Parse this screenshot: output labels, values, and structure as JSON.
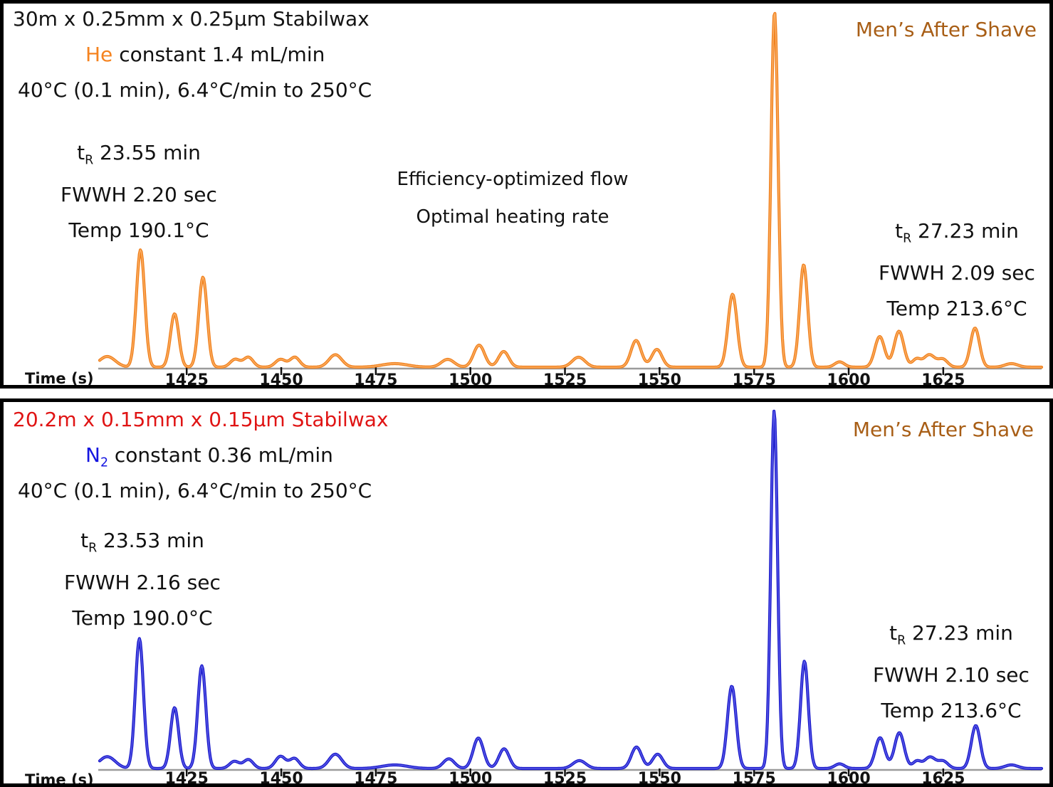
{
  "panels": [
    {
      "column_spec": "30m x 0.25mm x 0.25µm Stabilwax",
      "column_spec_color": "#141414",
      "carrier": {
        "gas": "He",
        "gas_sub": "",
        "gas_color": "#F5831F",
        "rest": "constant 1.4 mL/min"
      },
      "oven_program": "40°C (0.1 min), 6.4°C/min to 250°C",
      "peak1": {
        "t_symbol": "t",
        "t_sub": "R",
        "tr_value": "23.55 min",
        "fwwh": "FWWH 2.20 sec",
        "temp": "Temp 190.1°C"
      },
      "center_note": {
        "line1": "Efficiency-optimized flow",
        "line2": "Optimal heating rate"
      },
      "sample_name": "Men’s After Shave",
      "sample_color": "#A85E16",
      "peak2": {
        "t_symbol": "t",
        "t_sub": "R",
        "tr_value": "27.23 min",
        "fwwh": "FWWH 2.09 sec",
        "temp": "Temp 213.6°C"
      },
      "xlabel": "Time (s)"
    },
    {
      "column_spec": "20.2m x 0.15mm x 0.15µm Stabilwax",
      "column_spec_color": "#E01414",
      "carrier": {
        "gas": "N",
        "gas_sub": "2",
        "gas_color": "#1515E0",
        "rest": "constant 0.36 mL/min"
      },
      "oven_program": "40°C (0.1 min), 6.4°C/min to 250°C",
      "peak1": {
        "t_symbol": "t",
        "t_sub": "R",
        "tr_value": "23.53 min",
        "fwwh": "FWWH 2.16 sec",
        "temp": "Temp 190.0°C"
      },
      "sample_name": "Men’s After Shave",
      "sample_color": "#A85E16",
      "peak2": {
        "t_symbol": "t",
        "t_sub": "R",
        "tr_value": "27.23 min",
        "fwwh": "FWWH 2.10 sec",
        "temp": "Temp 213.6°C"
      },
      "xlabel": "Time (s)"
    }
  ],
  "chart_data": [
    {
      "type": "line",
      "title": "GC-FID chromatogram, Men's After Shave, 30m x 0.25mm x 0.25um Stabilwax, He 1.4 mL/min",
      "xlabel": "Time (s)",
      "x_range": [
        1402,
        1651
      ],
      "xticks": [
        1425,
        1450,
        1475,
        1500,
        1525,
        1550,
        1575,
        1600,
        1625
      ],
      "grid": false,
      "legend": "none",
      "series_color": "#F0811F",
      "series_core_color": "#FBAE62",
      "axis_color": "#9B9B9B",
      "peak_format": [
        "retention_time_s",
        "relative_height_0to1",
        "fwhm_s"
      ],
      "peaks": [
        [
          1404.0,
          0.03,
          5.0
        ],
        [
          1412.8,
          0.33,
          2.6
        ],
        [
          1421.8,
          0.15,
          2.6
        ],
        [
          1429.3,
          0.253,
          2.6
        ],
        [
          1437.8,
          0.022,
          3.0
        ],
        [
          1441.3,
          0.028,
          3.0
        ],
        [
          1449.8,
          0.022,
          3.2
        ],
        [
          1453.6,
          0.028,
          3.0
        ],
        [
          1464.3,
          0.035,
          4.0
        ],
        [
          1480.0,
          0.01,
          8.0
        ],
        [
          1494.0,
          0.022,
          4.0
        ],
        [
          1502.3,
          0.062,
          3.4
        ],
        [
          1508.8,
          0.044,
          3.2
        ],
        [
          1528.6,
          0.028,
          4.0
        ],
        [
          1543.8,
          0.075,
          3.2
        ],
        [
          1549.3,
          0.05,
          3.2
        ],
        [
          1569.3,
          0.205,
          2.8
        ],
        [
          1580.4,
          1.0,
          2.2
        ],
        [
          1588.1,
          0.288,
          2.5
        ],
        [
          1597.6,
          0.015,
          3.0
        ],
        [
          1608.2,
          0.086,
          3.0
        ],
        [
          1613.3,
          0.101,
          3.0
        ],
        [
          1617.9,
          0.022,
          2.5
        ],
        [
          1621.3,
          0.035,
          3.5
        ],
        [
          1624.9,
          0.022,
          3.0
        ],
        [
          1633.4,
          0.11,
          2.8
        ],
        [
          1643.0,
          0.01,
          4.0
        ]
      ],
      "annotated_peaks": [
        {
          "tr_min": 23.55,
          "fwwh_sec": 2.2,
          "temp_c": 190.1
        },
        {
          "tr_min": 27.23,
          "fwwh_sec": 2.09,
          "temp_c": 213.6
        }
      ]
    },
    {
      "type": "line",
      "title": "GC-FID chromatogram, Men's After Shave, 20.2m x 0.15mm x 0.15um Stabilwax, N2 0.36 mL/min",
      "xlabel": "Time (s)",
      "x_range": [
        1402,
        1651
      ],
      "xticks": [
        1425,
        1450,
        1475,
        1500,
        1525,
        1550,
        1575,
        1600,
        1625
      ],
      "grid": false,
      "legend": "none",
      "series_color": "#1C1CCB",
      "series_core_color": "#5A5AE8",
      "axis_color": "#9B9B9B",
      "peak_format": [
        "retention_time_s",
        "relative_height_0to1",
        "fwhm_s"
      ],
      "peaks": [
        [
          1404.0,
          0.033,
          5.0
        ],
        [
          1412.5,
          0.363,
          2.5
        ],
        [
          1421.8,
          0.17,
          2.5
        ],
        [
          1429.0,
          0.287,
          2.5
        ],
        [
          1437.6,
          0.02,
          3.0
        ],
        [
          1441.3,
          0.025,
          3.0
        ],
        [
          1449.8,
          0.034,
          3.2
        ],
        [
          1453.5,
          0.028,
          3.0
        ],
        [
          1464.3,
          0.04,
          4.0
        ],
        [
          1480.0,
          0.01,
          8.0
        ],
        [
          1494.3,
          0.027,
          3.5
        ],
        [
          1502.1,
          0.085,
          3.2
        ],
        [
          1508.9,
          0.055,
          3.2
        ],
        [
          1528.8,
          0.022,
          4.0
        ],
        [
          1543.9,
          0.06,
          3.2
        ],
        [
          1549.5,
          0.04,
          3.2
        ],
        [
          1569.1,
          0.23,
          2.7
        ],
        [
          1580.3,
          1.0,
          2.1
        ],
        [
          1588.3,
          0.3,
          2.4
        ],
        [
          1597.6,
          0.013,
          3.0
        ],
        [
          1608.3,
          0.086,
          3.0
        ],
        [
          1613.4,
          0.1,
          3.0
        ],
        [
          1618.0,
          0.02,
          2.5
        ],
        [
          1621.5,
          0.032,
          3.5
        ],
        [
          1625.0,
          0.02,
          3.0
        ],
        [
          1633.6,
          0.12,
          2.8
        ],
        [
          1643.0,
          0.01,
          4.0
        ]
      ],
      "annotated_peaks": [
        {
          "tr_min": 23.53,
          "fwwh_sec": 2.16,
          "temp_c": 190.0
        },
        {
          "tr_min": 27.23,
          "fwwh_sec": 2.1,
          "temp_c": 213.6
        }
      ]
    }
  ]
}
